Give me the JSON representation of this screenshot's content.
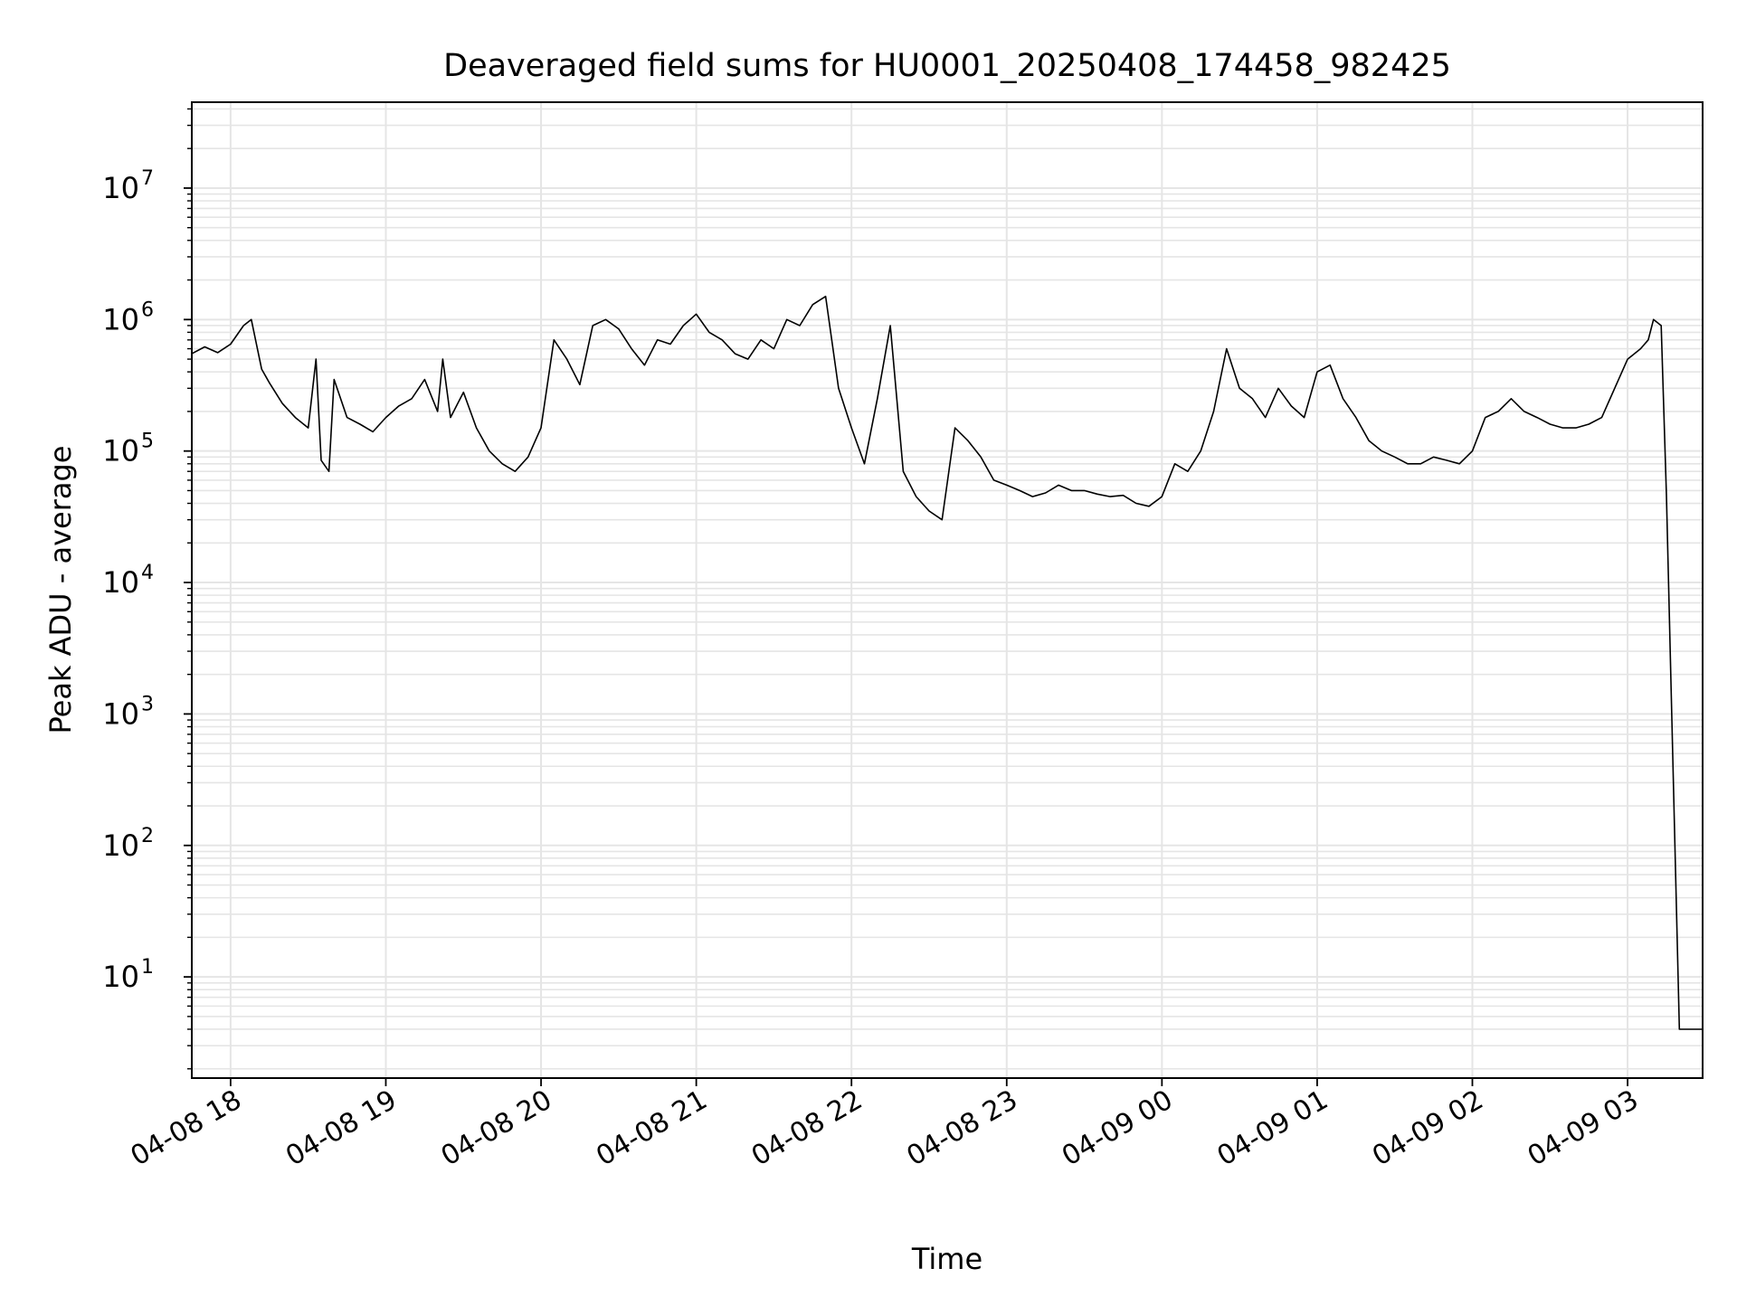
{
  "chart_data": {
    "type": "line",
    "title": "Deaveraged field sums for HU0001_20250408_174458_982425",
    "xlabel": "Time",
    "ylabel": "Peak ADU - average",
    "yscale": "log",
    "xlim": [
      "2025-04-08 17:45",
      "2025-04-09 03:29"
    ],
    "ylim": [
      1.7,
      45000000
    ],
    "grid": true,
    "line_color": "#000000",
    "grid_color": "#e5e5e5",
    "x_tick_labels": [
      "04-08 18",
      "04-08 19",
      "04-08 20",
      "04-08 21",
      "04-08 22",
      "04-08 23",
      "04-09 00",
      "04-09 01",
      "04-09 02",
      "04-09 03"
    ],
    "x_tick_times": [
      "2025-04-08 18:00",
      "2025-04-08 19:00",
      "2025-04-08 20:00",
      "2025-04-08 21:00",
      "2025-04-08 22:00",
      "2025-04-08 23:00",
      "2025-04-09 00:00",
      "2025-04-09 01:00",
      "2025-04-09 02:00",
      "2025-04-09 03:00"
    ],
    "y_ticks": [
      {
        "value": 10,
        "base": "10",
        "exp": "1"
      },
      {
        "value": 100,
        "base": "10",
        "exp": "2"
      },
      {
        "value": 1000,
        "base": "10",
        "exp": "3"
      },
      {
        "value": 10000,
        "base": "10",
        "exp": "4"
      },
      {
        "value": 100000,
        "base": "10",
        "exp": "5"
      },
      {
        "value": 1000000,
        "base": "10",
        "exp": "6"
      },
      {
        "value": 10000000,
        "base": "10",
        "exp": "7"
      }
    ],
    "series": [
      {
        "x": [
          "2025-04-08 17:45",
          "2025-04-08 17:50",
          "2025-04-08 17:55",
          "2025-04-08 18:00",
          "2025-04-08 18:05",
          "2025-04-08 18:08",
          "2025-04-08 18:12",
          "2025-04-08 18:15",
          "2025-04-08 18:20",
          "2025-04-08 18:25",
          "2025-04-08 18:30",
          "2025-04-08 18:33",
          "2025-04-08 18:35",
          "2025-04-08 18:38",
          "2025-04-08 18:40",
          "2025-04-08 18:45",
          "2025-04-08 18:50",
          "2025-04-08 18:55",
          "2025-04-08 19:00",
          "2025-04-08 19:05",
          "2025-04-08 19:10",
          "2025-04-08 19:15",
          "2025-04-08 19:20",
          "2025-04-08 19:22",
          "2025-04-08 19:25",
          "2025-04-08 19:30",
          "2025-04-08 19:35",
          "2025-04-08 19:40",
          "2025-04-08 19:45",
          "2025-04-08 19:50",
          "2025-04-08 19:55",
          "2025-04-08 20:00",
          "2025-04-08 20:05",
          "2025-04-08 20:10",
          "2025-04-08 20:15",
          "2025-04-08 20:20",
          "2025-04-08 20:25",
          "2025-04-08 20:30",
          "2025-04-08 20:35",
          "2025-04-08 20:40",
          "2025-04-08 20:45",
          "2025-04-08 20:50",
          "2025-04-08 20:55",
          "2025-04-08 21:00",
          "2025-04-08 21:05",
          "2025-04-08 21:10",
          "2025-04-08 21:15",
          "2025-04-08 21:20",
          "2025-04-08 21:25",
          "2025-04-08 21:30",
          "2025-04-08 21:35",
          "2025-04-08 21:40",
          "2025-04-08 21:45",
          "2025-04-08 21:50",
          "2025-04-08 21:55",
          "2025-04-08 22:00",
          "2025-04-08 22:05",
          "2025-04-08 22:10",
          "2025-04-08 22:15",
          "2025-04-08 22:20",
          "2025-04-08 22:25",
          "2025-04-08 22:30",
          "2025-04-08 22:35",
          "2025-04-08 22:40",
          "2025-04-08 22:45",
          "2025-04-08 22:50",
          "2025-04-08 22:55",
          "2025-04-08 23:00",
          "2025-04-08 23:05",
          "2025-04-08 23:10",
          "2025-04-08 23:15",
          "2025-04-08 23:20",
          "2025-04-08 23:25",
          "2025-04-08 23:30",
          "2025-04-08 23:35",
          "2025-04-08 23:40",
          "2025-04-08 23:45",
          "2025-04-08 23:50",
          "2025-04-08 23:55",
          "2025-04-09 00:00",
          "2025-04-09 00:05",
          "2025-04-09 00:10",
          "2025-04-09 00:15",
          "2025-04-09 00:20",
          "2025-04-09 00:25",
          "2025-04-09 00:30",
          "2025-04-09 00:35",
          "2025-04-09 00:40",
          "2025-04-09 00:45",
          "2025-04-09 00:50",
          "2025-04-09 00:55",
          "2025-04-09 01:00",
          "2025-04-09 01:05",
          "2025-04-09 01:10",
          "2025-04-09 01:15",
          "2025-04-09 01:20",
          "2025-04-09 01:25",
          "2025-04-09 01:30",
          "2025-04-09 01:35",
          "2025-04-09 01:40",
          "2025-04-09 01:45",
          "2025-04-09 01:50",
          "2025-04-09 01:55",
          "2025-04-09 02:00",
          "2025-04-09 02:05",
          "2025-04-09 02:10",
          "2025-04-09 02:15",
          "2025-04-09 02:20",
          "2025-04-09 02:25",
          "2025-04-09 02:30",
          "2025-04-09 02:35",
          "2025-04-09 02:40",
          "2025-04-09 02:45",
          "2025-04-09 02:50",
          "2025-04-09 02:55",
          "2025-04-09 03:00",
          "2025-04-09 03:05",
          "2025-04-09 03:08",
          "2025-04-09 03:10",
          "2025-04-09 03:13",
          "2025-04-09 03:15",
          "2025-04-09 03:20",
          "2025-04-09 03:25",
          "2025-04-09 03:29"
        ],
        "y": [
          550000,
          620000,
          560000,
          650000,
          900000,
          1000000,
          420000,
          330000,
          230000,
          180000,
          150000,
          500000,
          85000,
          70000,
          350000,
          180000,
          160000,
          140000,
          180000,
          220000,
          250000,
          350000,
          200000,
          500000,
          180000,
          280000,
          150000,
          100000,
          80000,
          70000,
          90000,
          150000,
          700000,
          500000,
          320000,
          900000,
          1000000,
          850000,
          600000,
          450000,
          700000,
          650000,
          900000,
          1100000,
          800000,
          700000,
          550000,
          500000,
          700000,
          600000,
          1000000,
          900000,
          1300000,
          1500000,
          300000,
          150000,
          80000,
          250000,
          900000,
          70000,
          45000,
          35000,
          30000,
          150000,
          120000,
          90000,
          60000,
          55000,
          50000,
          45000,
          48000,
          55000,
          50000,
          50000,
          47000,
          45000,
          46000,
          40000,
          38000,
          45000,
          80000,
          70000,
          100000,
          200000,
          600000,
          300000,
          250000,
          180000,
          300000,
          220000,
          180000,
          400000,
          450000,
          250000,
          180000,
          120000,
          100000,
          90000,
          80000,
          80000,
          90000,
          85000,
          80000,
          100000,
          180000,
          200000,
          250000,
          200000,
          180000,
          160000,
          150000,
          150000,
          160000,
          180000,
          300000,
          500000,
          600000,
          700000,
          1000000,
          900000,
          46000,
          4,
          4,
          4
        ]
      }
    ]
  }
}
